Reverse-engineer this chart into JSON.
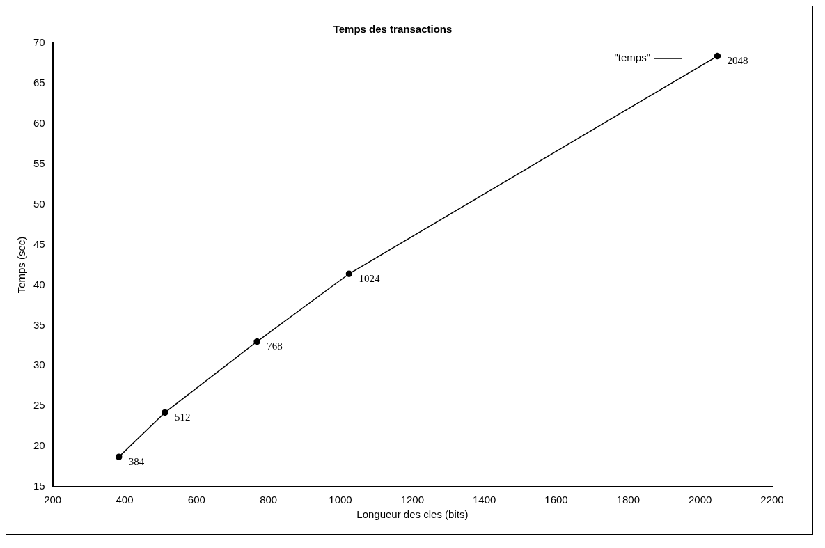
{
  "chart_data": {
    "type": "line",
    "title": "Temps des transactions",
    "xlabel": "Longueur des cles (bits)",
    "ylabel": "Temps (sec)",
    "x": [
      384,
      512,
      768,
      1024,
      2048
    ],
    "series": [
      {
        "name": "\"temps\"",
        "color": "#000000",
        "values": [
          18.7,
          24.2,
          33.0,
          41.4,
          68.4
        ]
      }
    ],
    "annotations": [
      {
        "text": "384",
        "x": 384,
        "y": 18.7
      },
      {
        "text": "512",
        "x": 512,
        "y": 24.2
      },
      {
        "text": "768",
        "x": 768,
        "y": 33.0
      },
      {
        "text": "1024",
        "x": 1024,
        "y": 41.4
      },
      {
        "text": "2048",
        "x": 2048,
        "y": 68.4
      }
    ],
    "xlim": [
      200,
      2200
    ],
    "xticks": [
      200,
      400,
      600,
      800,
      1000,
      1200,
      1400,
      1600,
      1800,
      2000,
      2200
    ],
    "ylim": [
      15,
      70
    ],
    "yticks": [
      15,
      20,
      25,
      30,
      35,
      40,
      45,
      50,
      55,
      60,
      65,
      70
    ],
    "grid": false,
    "legend": "top right",
    "marker": "circle",
    "line_style": "solid"
  }
}
